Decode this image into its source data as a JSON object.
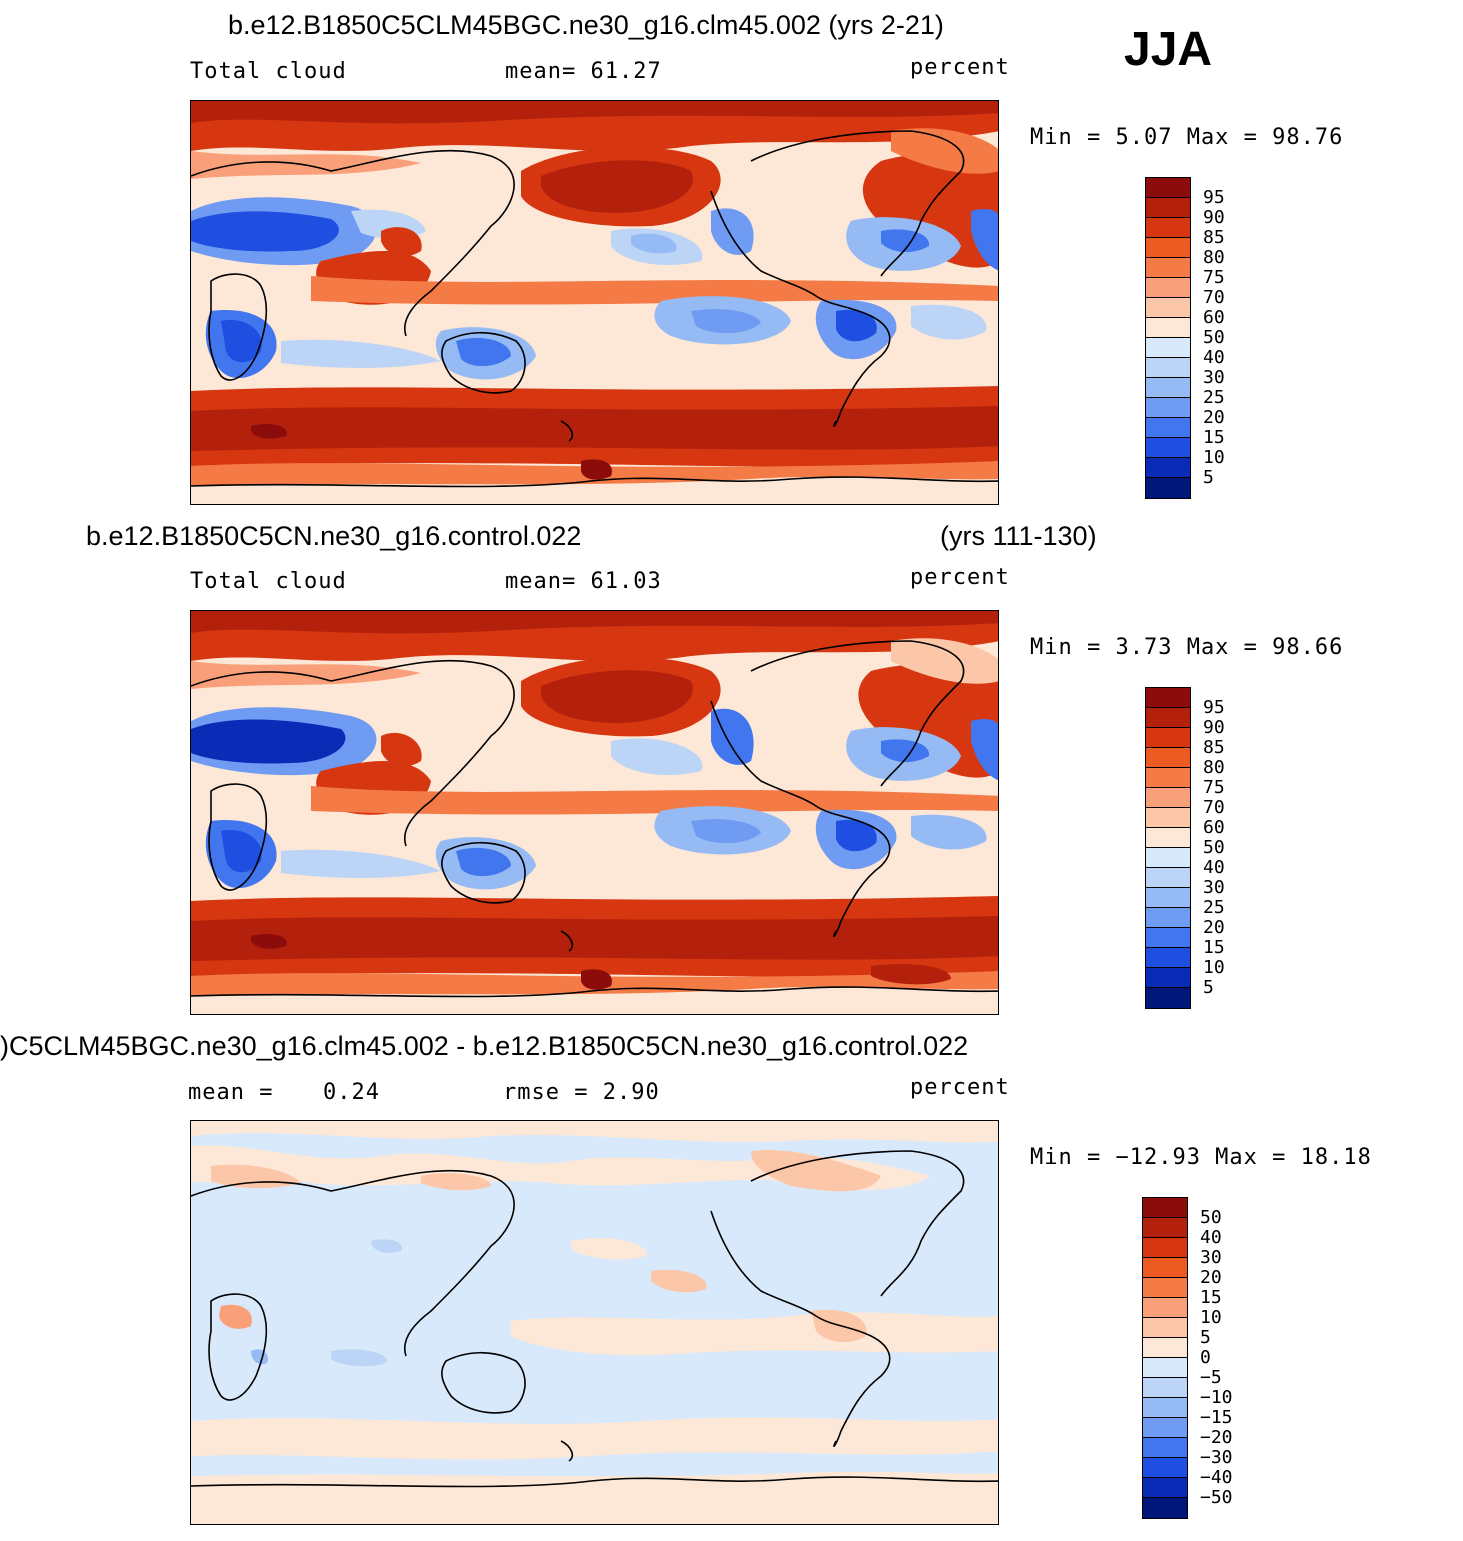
{
  "season": "JJA",
  "panels": [
    {
      "title": "b.e12.B1850C5CLM45BGC.ne30_g16.clm45.002 (yrs 2-21)",
      "title_right": "",
      "variable": "Total cloud",
      "stat1": "mean=   61.27",
      "stat2": "",
      "units": "percent",
      "minmax": "Min =   5.07 Max =  98.76",
      "colorbar": {
        "labels": [
          "95",
          "90",
          "85",
          "80",
          "75",
          "70",
          "60",
          "50",
          "40",
          "30",
          "25",
          "20",
          "15",
          "10",
          "5"
        ],
        "colors": [
          "#8c0b0b",
          "#b3200b",
          "#d63610",
          "#ed5b23",
          "#f47a46",
          "#f9a07a",
          "#fcc6a8",
          "#fde7d6",
          "#d8e9fb",
          "#bcd5f7",
          "#96bbf4",
          "#6f9cf2",
          "#4276ee",
          "#1f4fe0",
          "#0a2bb5",
          "#001678"
        ]
      }
    },
    {
      "title": "b.e12.B1850C5CN.ne30_g16.control.022",
      "title_right": "(yrs 111-130)",
      "variable": "Total cloud",
      "stat1": "mean=   61.03",
      "stat2": "",
      "units": "percent",
      "minmax": "Min =   3.73 Max =  98.66",
      "colorbar": {
        "labels": [
          "95",
          "90",
          "85",
          "80",
          "75",
          "70",
          "60",
          "50",
          "40",
          "30",
          "25",
          "20",
          "15",
          "10",
          "5"
        ],
        "colors": [
          "#8c0b0b",
          "#b3200b",
          "#d63610",
          "#ed5b23",
          "#f47a46",
          "#f9a07a",
          "#fcc6a8",
          "#fde7d6",
          "#d8e9fb",
          "#bcd5f7",
          "#96bbf4",
          "#6f9cf2",
          "#4276ee",
          "#1f4fe0",
          "#0a2bb5",
          "#001678"
        ]
      }
    },
    {
      "title": ")C5CLM45BGC.ne30_g16.clm45.002 - b.e12.B1850C5CN.ne30_g16.control.022",
      "title_right": "",
      "variable": "mean =",
      "stat1": "0.24",
      "stat2": "rmse =    2.90",
      "units": "percent",
      "minmax": "Min = −12.93 Max =  18.18",
      "colorbar": {
        "labels": [
          "50",
          "40",
          "30",
          "20",
          "15",
          "10",
          "5",
          "0",
          "−5",
          "−10",
          "−15",
          "−20",
          "−30",
          "−40",
          "−50"
        ],
        "colors": [
          "#8c0b0b",
          "#b3200b",
          "#d63610",
          "#ed5b23",
          "#f47a46",
          "#f9a07a",
          "#fcc6a8",
          "#fde7d6",
          "#d8e9fb",
          "#bcd5f7",
          "#96bbf4",
          "#6f9cf2",
          "#4276ee",
          "#1f4fe0",
          "#0a2bb5",
          "#001678"
        ]
      }
    }
  ]
}
